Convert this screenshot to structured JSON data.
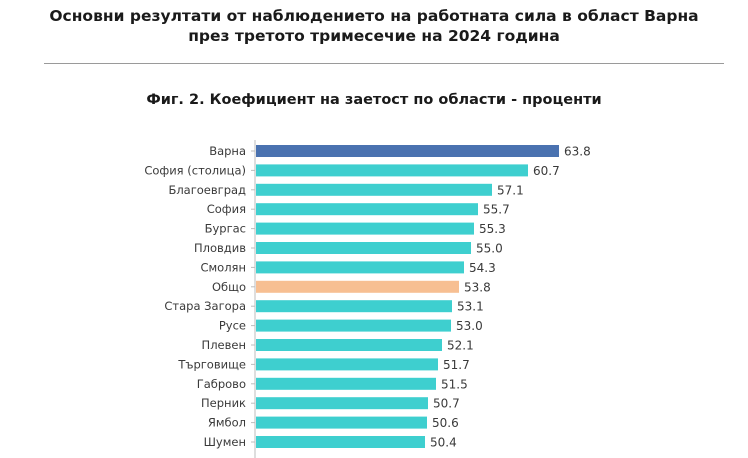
{
  "header": {
    "line1": "Основни резултати от наблюдението на работната сила в област Варна",
    "line2": "през третото тримесечие на 2024 година"
  },
  "chart_data": {
    "type": "bar",
    "orientation": "horizontal",
    "title": "Фиг. 2. Коефициент на заетост по области - проценти",
    "categories": [
      "Варна",
      "София (столица)",
      "Благоевград",
      "София",
      "Бургас",
      "Пловдив",
      "Смолян",
      "Общо",
      "Стара Загора",
      "Русе",
      "Плевен",
      "Търговище",
      "Габрово",
      "Перник",
      "Ямбол",
      "Шумен"
    ],
    "values": [
      63.8,
      60.7,
      57.1,
      55.7,
      55.3,
      55.0,
      54.3,
      53.8,
      53.1,
      53.0,
      52.1,
      51.7,
      51.5,
      50.7,
      50.6,
      50.4
    ],
    "value_labels": [
      "63.8",
      "60.7",
      "57.1",
      "55.7",
      "55.3",
      "55.0",
      "54.3",
      "53.8",
      "53.1",
      "53.0",
      "52.1",
      "51.7",
      "51.5",
      "50.7",
      "50.6",
      "50.4"
    ],
    "xlim": [
      33.5,
      66.5
    ],
    "grid": false,
    "colors": {
      "default": "#3ecfcf",
      "Варна": "#4a72b0",
      "Общо": "#f7bf92"
    }
  }
}
